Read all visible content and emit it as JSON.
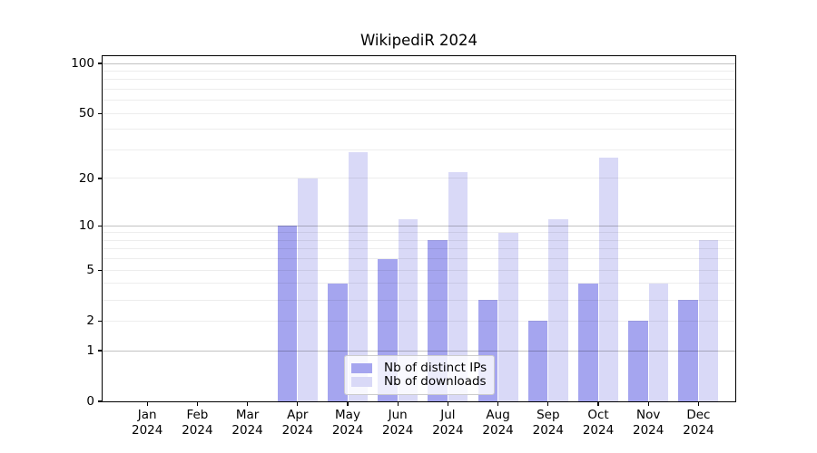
{
  "chart_data": {
    "type": "bar",
    "title": "WikipediR 2024",
    "categories": [
      "Jan 2024",
      "Feb 2024",
      "Mar 2024",
      "Apr 2024",
      "May 2024",
      "Jun 2024",
      "Jul 2024",
      "Aug 2024",
      "Sep 2024",
      "Oct 2024",
      "Nov 2024",
      "Dec 2024"
    ],
    "series": [
      {
        "name": "Nb of distinct IPs",
        "color": "#a5a5ef",
        "values": [
          0,
          0,
          0,
          10,
          4,
          6,
          8,
          3,
          2,
          4,
          2,
          3
        ]
      },
      {
        "name": "Nb of downloads",
        "color": "#d9d9f7",
        "values": [
          0,
          0,
          0,
          20,
          29,
          11,
          22,
          9,
          11,
          27,
          4,
          8
        ]
      }
    ],
    "xlabel": "",
    "ylabel": "",
    "yaxis": {
      "scale": "log1p",
      "ticks": [
        0,
        1,
        2,
        5,
        10,
        20,
        50,
        100
      ],
      "minor_gridlines": [
        2,
        3,
        4,
        5,
        6,
        7,
        8,
        9,
        20,
        30,
        40,
        50,
        60,
        70,
        80,
        90
      ],
      "major_gridlines": [
        1,
        10,
        100
      ],
      "ylim": [
        0,
        111
      ]
    },
    "grid": "horizontal",
    "legend_position": "lower center"
  }
}
